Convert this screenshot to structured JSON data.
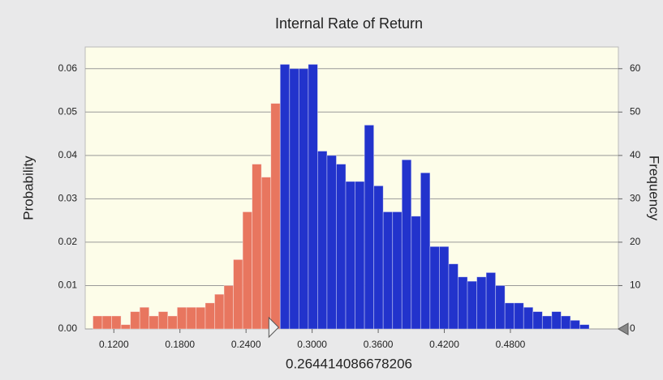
{
  "chart_data": {
    "type": "histogram",
    "title": "Internal Rate of Return",
    "y_label": "Probability",
    "y2_label": "Frequency",
    "bins": [
      0.101,
      0.1095,
      0.118,
      0.1265,
      0.135,
      0.1435,
      0.152,
      0.1605,
      0.169,
      0.1775,
      0.186,
      0.1945,
      0.203,
      0.2115,
      0.22,
      0.2285,
      0.237,
      0.2455,
      0.254,
      0.2625,
      0.271,
      0.2795,
      0.288,
      0.2965,
      0.305,
      0.3135,
      0.322,
      0.3305,
      0.339,
      0.3475,
      0.356,
      0.3645,
      0.373,
      0.3815,
      0.39,
      0.3985,
      0.407,
      0.4155,
      0.424,
      0.4325,
      0.441,
      0.4495,
      0.458,
      0.4665,
      0.475,
      0.4835,
      0.492,
      0.5005,
      0.509,
      0.5175,
      0.526,
      0.5345,
      0.543,
      0.5515
    ],
    "counts": [
      3,
      3,
      3,
      1,
      4,
      5,
      3,
      4,
      3,
      5,
      5,
      5,
      6,
      8,
      10,
      16,
      27,
      38,
      35,
      52,
      61,
      60,
      60,
      61,
      41,
      40,
      38,
      34,
      34,
      47,
      33,
      27,
      27,
      39,
      26,
      36,
      19,
      19,
      15,
      12,
      11,
      12,
      13,
      10,
      6,
      6,
      5,
      4,
      3,
      4,
      3,
      2,
      1
    ],
    "axis": "y2",
    "xlim": [
      0.094,
      0.578
    ],
    "xticks": [
      {
        "value": 0.12,
        "label": "0.1200"
      },
      {
        "value": 0.18,
        "label": "0.1800"
      },
      {
        "value": 0.24,
        "label": "0.2400"
      },
      {
        "value": 0.3,
        "label": "0.3000"
      },
      {
        "value": 0.36,
        "label": "0.3600"
      },
      {
        "value": 0.42,
        "label": "0.4200"
      },
      {
        "value": 0.48,
        "label": "0.4800"
      }
    ],
    "ylim": [
      0,
      0.065
    ],
    "yticks": [
      {
        "value": 0,
        "label": "0.00"
      },
      {
        "value": 0.01,
        "label": "0.01"
      },
      {
        "value": 0.02,
        "label": "0.02"
      },
      {
        "value": 0.03,
        "label": "0.03"
      },
      {
        "value": 0.04,
        "label": "0.04"
      },
      {
        "value": 0.05,
        "label": "0.05"
      },
      {
        "value": 0.06,
        "label": "0.06"
      }
    ],
    "y2lim": [
      0,
      65
    ],
    "y2ticks": [
      0,
      10,
      20,
      30,
      40,
      50,
      60
    ],
    "grid": true,
    "certainty_value": 0.264414086678206,
    "lower_color": "#e8765f",
    "upper_color": "#2233cc"
  }
}
